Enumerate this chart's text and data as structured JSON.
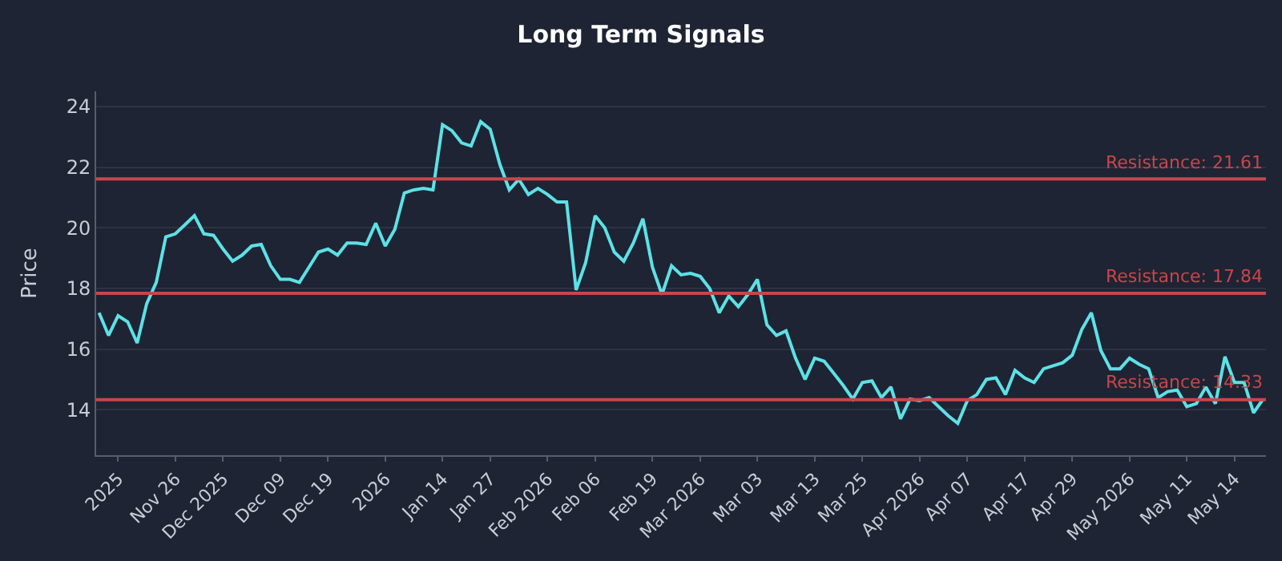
{
  "chart_data": {
    "type": "line",
    "title": "Long Term Signals",
    "ylabel": "Price",
    "categories": [
      null,
      null,
      "2025",
      null,
      null,
      null,
      null,
      null,
      "Nov 26",
      null,
      null,
      null,
      null,
      "Dec 2025",
      null,
      null,
      null,
      null,
      null,
      "Dec 09",
      null,
      null,
      null,
      null,
      "Dec 19",
      null,
      null,
      null,
      null,
      null,
      "2026",
      null,
      null,
      null,
      null,
      null,
      "Jan 14",
      null,
      null,
      null,
      null,
      "Jan 27",
      null,
      null,
      null,
      null,
      null,
      "Feb 2026",
      null,
      null,
      null,
      null,
      "Feb 06",
      null,
      null,
      null,
      null,
      null,
      "Feb 19",
      null,
      null,
      null,
      null,
      "Mar 2026",
      null,
      null,
      null,
      null,
      null,
      "Mar 03",
      null,
      null,
      null,
      null,
      null,
      "Mar 13",
      null,
      null,
      null,
      null,
      "Mar 25",
      null,
      null,
      null,
      null,
      null,
      "Apr 2026",
      null,
      null,
      null,
      null,
      "Apr 07",
      null,
      null,
      null,
      null,
      null,
      "Apr 17",
      null,
      null,
      null,
      null,
      "Apr 29",
      null,
      null,
      null,
      null,
      null,
      "May 2026",
      null,
      null,
      null,
      null,
      null,
      "May 11",
      null,
      null,
      null,
      null,
      "May 14",
      null,
      null,
      null
    ],
    "series": [
      {
        "color": "#5ce1e6",
        "values": [
          17.2,
          16.45,
          17.1,
          16.9,
          16.2,
          17.5,
          18.2,
          19.7,
          19.8,
          20.1,
          20.4,
          19.8,
          19.75,
          19.3,
          18.9,
          19.1,
          19.4,
          19.45,
          18.75,
          18.3,
          18.3,
          18.2,
          18.7,
          19.2,
          19.3,
          19.1,
          19.5,
          19.5,
          19.45,
          20.15,
          19.4,
          19.95,
          21.15,
          21.25,
          21.3,
          21.25,
          23.4,
          23.2,
          22.8,
          22.7,
          23.5,
          23.25,
          22.1,
          21.25,
          21.6,
          21.1,
          21.3,
          21.1,
          20.85,
          20.85,
          17.95,
          18.85,
          20.4,
          20.0,
          19.2,
          18.9,
          19.5,
          20.3,
          18.7,
          17.8,
          18.75,
          18.45,
          18.5,
          18.4,
          18.0,
          17.2,
          17.75,
          17.4,
          17.8,
          18.3,
          16.8,
          16.45,
          16.6,
          15.7,
          15.0,
          15.7,
          15.6,
          15.2,
          14.8,
          14.35,
          14.9,
          14.95,
          14.4,
          14.75,
          13.7,
          14.35,
          14.3,
          14.4,
          14.1,
          13.8,
          13.55,
          14.3,
          14.5,
          15.0,
          15.05,
          14.5,
          15.3,
          15.05,
          14.9,
          15.35,
          15.45,
          15.55,
          15.8,
          16.65,
          17.2,
          15.95,
          15.35,
          15.35,
          15.7,
          15.5,
          15.35,
          14.4,
          14.6,
          14.65,
          14.1,
          14.2,
          14.75,
          14.2,
          15.75,
          14.9,
          14.9,
          13.9,
          14.35
        ]
      }
    ],
    "ylim": [
      12.5,
      24.5
    ],
    "yticks": [
      14,
      16,
      18,
      20,
      22,
      24
    ],
    "grid": "y",
    "marker": "none",
    "line_style": "solid",
    "ref_lines": [
      {
        "axis": "y",
        "value": 21.61,
        "label": "Resistance: 21.61",
        "color": "#c9454b"
      },
      {
        "axis": "y",
        "value": 17.84,
        "label": "Resistance: 17.84",
        "color": "#c9454b"
      },
      {
        "axis": "y",
        "value": 14.33,
        "label": "Resistance: 14.33",
        "color": "#c9454b"
      }
    ]
  }
}
